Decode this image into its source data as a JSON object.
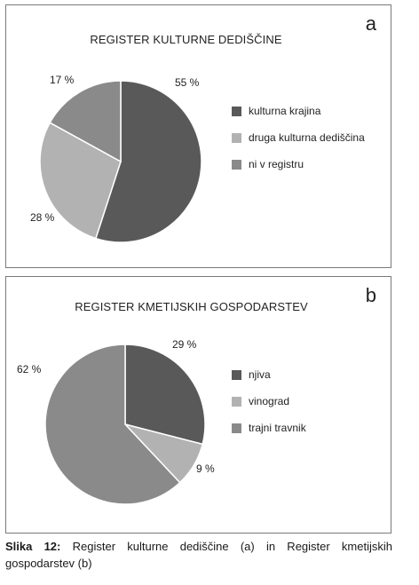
{
  "caption": {
    "label": "Slika 12:",
    "text": "Register kulturne dediščine (a) in Register kmetijskih gospodarstev (b)"
  },
  "chart_data": [
    {
      "type": "pie",
      "panel_letter": "a",
      "title": "REGISTER KULTURNE DEDIŠČINE",
      "categories": [
        "kulturna krajina",
        "druga kulturna dediščina",
        "ni v registru"
      ],
      "values": [
        55,
        28,
        17
      ],
      "value_labels": [
        "55 %",
        "28 %",
        "17 %"
      ],
      "colors": [
        "#595959",
        "#b2b2b2",
        "#8a8a8a"
      ],
      "legend": "right"
    },
    {
      "type": "pie",
      "panel_letter": "b",
      "title": "REGISTER KMETIJSKIH GOSPODARSTEV",
      "categories": [
        "njiva",
        "vinograd",
        "trajni travnik"
      ],
      "values": [
        29,
        9,
        62
      ],
      "value_labels": [
        "29 %",
        "9 %",
        "62 %"
      ],
      "colors": [
        "#595959",
        "#b2b2b2",
        "#8a8a8a"
      ],
      "legend": "right"
    }
  ]
}
